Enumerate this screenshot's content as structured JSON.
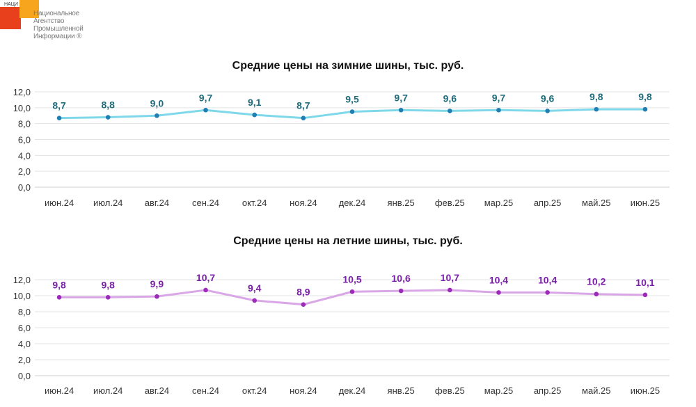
{
  "logo": {
    "small_text": "НАЦИ",
    "lines": [
      "Национальное",
      "Агентство",
      "Промышленной",
      "Информации ®"
    ]
  },
  "chart_data": [
    {
      "type": "line",
      "title": "Средние цены на зимние шины, тыс. руб.",
      "categories": [
        "июн.24",
        "июл.24",
        "авг.24",
        "сен.24",
        "окт.24",
        "ноя.24",
        "дек.24",
        "янв.25",
        "фев.25",
        "мар.25",
        "апр.25",
        "май.25",
        "июн.25"
      ],
      "series": [
        {
          "values": [
            8.7,
            8.8,
            9.0,
            9.7,
            9.1,
            8.7,
            9.5,
            9.7,
            9.6,
            9.7,
            9.6,
            9.8,
            9.8
          ],
          "labels": [
            "8,7",
            "8,8",
            "9,0",
            "9,7",
            "9,1",
            "8,7",
            "9,5",
            "9,7",
            "9,6",
            "9,7",
            "9,6",
            "9,8",
            "9,8"
          ],
          "line_color": "#7fd8ea",
          "marker_color": "#1f7fb3",
          "label_color": "#1e6b7a"
        }
      ],
      "ylim": [
        0,
        12
      ],
      "yticks": [
        "0,0",
        "2,0",
        "4,0",
        "6,0",
        "8,0",
        "10,0",
        "12,0"
      ],
      "grid": true
    },
    {
      "type": "line",
      "title": "Средние цены на летние шины, тыс. руб.",
      "categories": [
        "июн.24",
        "июл.24",
        "авг.24",
        "сен.24",
        "окт.24",
        "ноя.24",
        "дек.24",
        "янв.25",
        "фев.25",
        "мар.25",
        "апр.25",
        "май.25",
        "июн.25"
      ],
      "series": [
        {
          "values": [
            9.8,
            9.8,
            9.9,
            10.7,
            9.4,
            8.9,
            10.5,
            10.6,
            10.7,
            10.4,
            10.4,
            10.2,
            10.1
          ],
          "labels": [
            "9,8",
            "9,8",
            "9,9",
            "10,7",
            "9,4",
            "8,9",
            "10,5",
            "10,6",
            "10,7",
            "10,4",
            "10,4",
            "10,2",
            "10,1"
          ],
          "line_color": "#d9a6e6",
          "marker_color": "#9b2bb8",
          "label_color": "#7a1fa8"
        }
      ],
      "ylim": [
        0,
        12
      ],
      "yticks": [
        "0,0",
        "2,0",
        "4,0",
        "6,0",
        "8,0",
        "10,0",
        "12,0"
      ],
      "grid": true
    }
  ]
}
